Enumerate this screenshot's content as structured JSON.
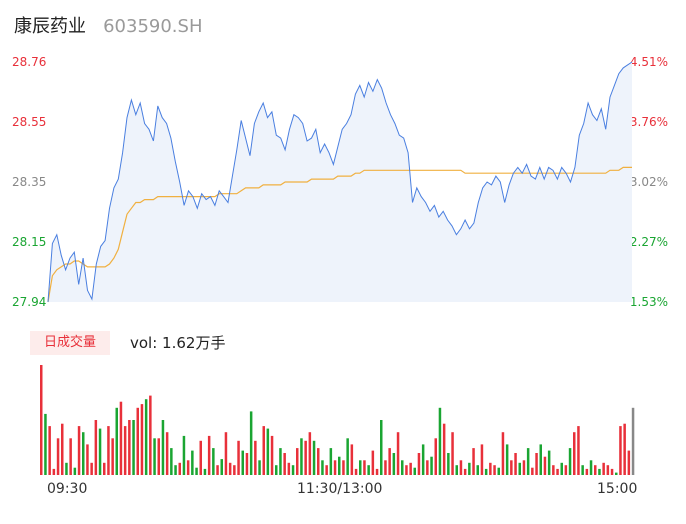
{
  "header": {
    "name": "康辰药业",
    "code": "603590.SH"
  },
  "price_axis": {
    "left": [
      {
        "text": "28.76",
        "tone": "red"
      },
      {
        "text": "28.55",
        "tone": "red"
      },
      {
        "text": "28.35",
        "tone": "gray"
      },
      {
        "text": "28.15",
        "tone": "green"
      },
      {
        "text": "27.94",
        "tone": "green"
      }
    ],
    "right": [
      {
        "text": "4.51%",
        "tone": "red"
      },
      {
        "text": "3.76%",
        "tone": "red"
      },
      {
        "text": "3.02%",
        "tone": "gray"
      },
      {
        "text": "2.27%",
        "tone": "green"
      },
      {
        "text": "1.53%",
        "tone": "green"
      }
    ]
  },
  "volume": {
    "badge": "日成交量",
    "label": "vol: 1.62万手"
  },
  "time_axis": [
    "09:30",
    "11:30/13:00",
    "15:00"
  ],
  "colors": {
    "price_line": "#4a7fe0",
    "avg_line": "#f0b040",
    "up": "#e8303a",
    "down": "#1aa532",
    "neutral": "#888888"
  },
  "chart_data": {
    "type": "line",
    "ylim": [
      27.94,
      28.76
    ],
    "series": [
      {
        "values": [
          27.94,
          28.14,
          28.17,
          28.1,
          28.05,
          28.09,
          28.11,
          28.0,
          28.09,
          27.98,
          27.95,
          28.07,
          28.13,
          28.15,
          28.26,
          28.33,
          28.36,
          28.45,
          28.57,
          28.63,
          28.58,
          28.62,
          28.55,
          28.53,
          28.49,
          28.61,
          28.57,
          28.55,
          28.5,
          28.42,
          28.35,
          28.27,
          28.32,
          28.3,
          28.26,
          28.31,
          28.29,
          28.3,
          28.27,
          28.32,
          28.3,
          28.28,
          28.37,
          28.46,
          28.56,
          28.5,
          28.44,
          28.55,
          28.59,
          28.62,
          28.57,
          28.59,
          28.51,
          28.5,
          28.46,
          28.53,
          28.58,
          28.57,
          28.55,
          28.49,
          28.5,
          28.53,
          28.45,
          28.48,
          28.45,
          28.41,
          28.47,
          28.53,
          28.55,
          28.58,
          28.65,
          28.68,
          28.64,
          28.69,
          28.66,
          28.7,
          28.67,
          28.62,
          28.58,
          28.55,
          28.51,
          28.5,
          28.45,
          28.28,
          28.33,
          28.3,
          28.28,
          28.25,
          28.27,
          28.23,
          28.25,
          28.22,
          28.2,
          28.17,
          28.19,
          28.22,
          28.19,
          28.21,
          28.28,
          28.33,
          28.35,
          28.34,
          28.37,
          28.35,
          28.28,
          28.34,
          28.38,
          28.4,
          28.38,
          28.41,
          28.37,
          28.36,
          28.4,
          28.36,
          28.4,
          28.39,
          28.36,
          28.4,
          28.38,
          28.35,
          28.4,
          28.51,
          28.55,
          28.62,
          28.58,
          28.56,
          28.6,
          28.53,
          28.64,
          28.68,
          28.72,
          28.74,
          28.75,
          28.76
        ]
      },
      {
        "values": [
          27.94,
          28.03,
          28.05,
          28.06,
          28.07,
          28.07,
          28.08,
          28.08,
          28.07,
          28.06,
          28.06,
          28.06,
          28.06,
          28.06,
          28.07,
          28.09,
          28.12,
          28.18,
          28.24,
          28.26,
          28.28,
          28.28,
          28.29,
          28.29,
          28.29,
          28.3,
          28.3,
          28.3,
          28.3,
          28.3,
          28.3,
          28.3,
          28.3,
          28.3,
          28.3,
          28.3,
          28.3,
          28.3,
          28.3,
          28.31,
          28.31,
          28.31,
          28.31,
          28.31,
          28.32,
          28.33,
          28.33,
          28.33,
          28.33,
          28.34,
          28.34,
          28.34,
          28.34,
          28.34,
          28.35,
          28.35,
          28.35,
          28.35,
          28.35,
          28.35,
          28.36,
          28.36,
          28.36,
          28.36,
          28.36,
          28.36,
          28.37,
          28.37,
          28.37,
          28.37,
          28.38,
          28.38,
          28.39,
          28.39,
          28.39,
          28.39,
          28.39,
          28.39,
          28.39,
          28.39,
          28.39,
          28.39,
          28.39,
          28.39,
          28.39,
          28.39,
          28.39,
          28.39,
          28.39,
          28.39,
          28.39,
          28.39,
          28.39,
          28.39,
          28.39,
          28.38,
          28.38,
          28.38,
          28.38,
          28.38,
          28.38,
          28.38,
          28.38,
          28.38,
          28.38,
          28.38,
          28.38,
          28.38,
          28.38,
          28.38,
          28.38,
          28.38,
          28.38,
          28.38,
          28.38,
          28.38,
          28.38,
          28.38,
          28.38,
          28.38,
          28.38,
          28.38,
          28.38,
          28.38,
          28.38,
          28.38,
          28.38,
          28.38,
          28.39,
          28.39,
          28.39,
          28.4,
          28.4,
          28.4
        ]
      }
    ],
    "volume_bars": [
      90,
      50,
      40,
      5,
      30,
      42,
      10,
      30,
      6,
      40,
      35,
      25,
      10,
      45,
      38,
      10,
      40,
      30,
      55,
      60,
      40,
      45,
      45,
      55,
      58,
      62,
      65,
      30,
      30,
      45,
      35,
      22,
      8,
      10,
      32,
      12,
      20,
      6,
      28,
      5,
      32,
      22,
      8,
      13,
      35,
      10,
      8,
      28,
      20,
      18,
      52,
      28,
      12,
      40,
      38,
      32,
      8,
      22,
      18,
      10,
      8,
      22,
      30,
      28,
      35,
      28,
      22,
      12,
      8,
      22,
      12,
      15,
      12,
      30,
      25,
      5,
      12,
      12,
      8,
      20,
      5,
      45,
      12,
      22,
      18,
      35,
      12,
      8,
      10,
      6,
      18,
      25,
      12,
      15,
      30,
      55,
      42,
      18,
      35,
      8,
      12,
      5,
      10,
      22,
      8,
      25,
      5,
      10,
      8,
      6,
      35,
      25,
      12,
      18,
      10,
      12,
      22,
      6,
      18,
      25,
      15,
      20,
      8,
      5,
      10,
      8,
      22,
      35,
      40,
      8,
      5,
      12,
      8,
      5,
      10,
      8,
      5,
      2,
      40,
      42,
      20,
      55
    ],
    "volume_colors": [
      "up",
      "down",
      "up",
      "up",
      "up",
      "up",
      "down",
      "up",
      "down",
      "up",
      "down",
      "up",
      "up",
      "up",
      "down",
      "up",
      "up",
      "up",
      "down",
      "up",
      "up",
      "up",
      "down",
      "up",
      "up",
      "down",
      "up",
      "down",
      "up",
      "down",
      "up",
      "down",
      "down",
      "up",
      "down",
      "up",
      "down",
      "down",
      "up",
      "down",
      "up",
      "down",
      "up",
      "down",
      "up",
      "up",
      "up",
      "up",
      "down",
      "up",
      "down",
      "up",
      "down",
      "up",
      "down",
      "up",
      "down",
      "down",
      "up",
      "up",
      "down",
      "up",
      "down",
      "up",
      "up",
      "down",
      "up",
      "down",
      "up",
      "down",
      "up",
      "down",
      "up",
      "down",
      "up",
      "up",
      "down",
      "up",
      "down",
      "up",
      "up",
      "down",
      "up",
      "up",
      "down",
      "up",
      "down",
      "up",
      "up",
      "down",
      "up",
      "down",
      "up",
      "down",
      "up",
      "down",
      "up",
      "down",
      "up",
      "down",
      "up",
      "up",
      "down",
      "up",
      "down",
      "up",
      "down",
      "up",
      "up",
      "down",
      "up",
      "down",
      "up",
      "up",
      "down",
      "up",
      "down",
      "up",
      "up",
      "down",
      "up",
      "down",
      "up",
      "up",
      "down",
      "up",
      "down",
      "up",
      "up",
      "down",
      "up",
      "down",
      "up",
      "down",
      "up",
      "up",
      "up",
      "down",
      "up",
      "up",
      "up",
      "neutral"
    ]
  }
}
